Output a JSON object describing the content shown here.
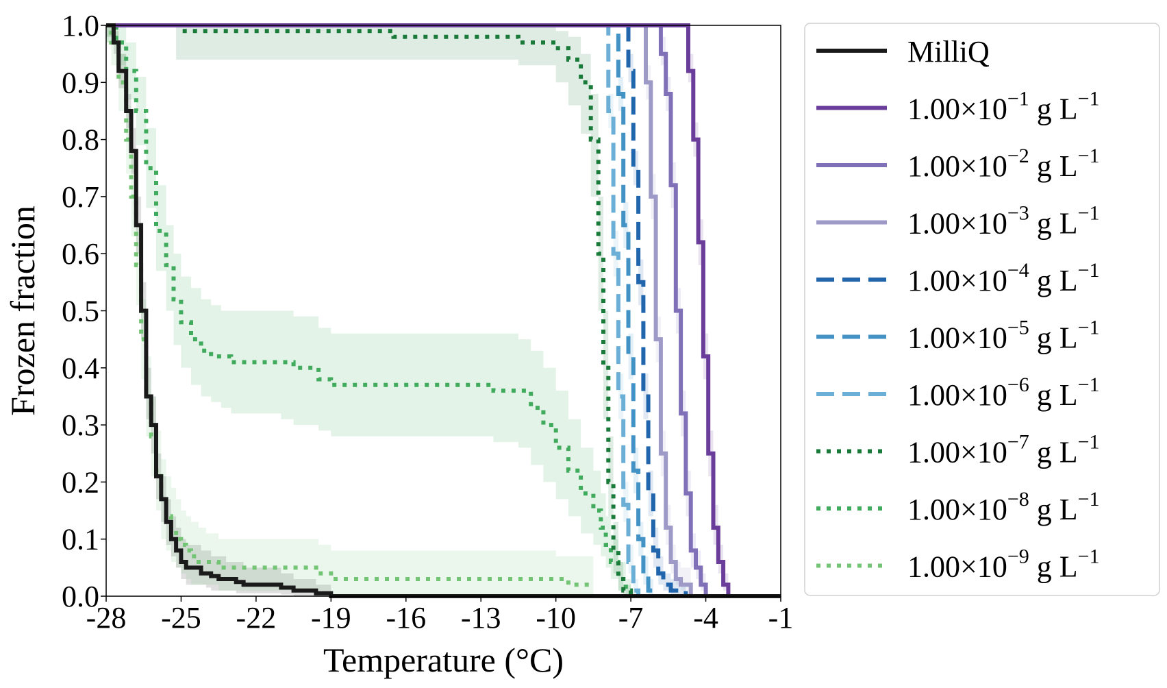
{
  "chart_data": {
    "type": "line",
    "xlabel": "Temperature (°C)",
    "ylabel": "Frozen fraction",
    "xlim": [
      -28,
      -1
    ],
    "ylim": [
      0,
      1
    ],
    "xticks": [
      "-28",
      "-25",
      "-22",
      "-19",
      "-16",
      "-13",
      "-10",
      "-7",
      "-4",
      "-1"
    ],
    "xtick_values": [
      -28,
      -25,
      -22,
      -19,
      -16,
      -13,
      -10,
      -7,
      -4,
      -1
    ],
    "yticks": [
      "0.0",
      "0.1",
      "0.2",
      "0.3",
      "0.4",
      "0.5",
      "0.6",
      "0.7",
      "0.8",
      "0.9",
      "1.0"
    ],
    "ytick_values": [
      0,
      0.1,
      0.2,
      0.3,
      0.4,
      0.5,
      0.6,
      0.7,
      0.8,
      0.9,
      1.0
    ],
    "grid": false,
    "legend_position": "outside-right",
    "series": [
      {
        "name": "MilliQ",
        "label_base": "MilliQ",
        "label_exp": "",
        "label_unit": "",
        "color": "#1a1a1a",
        "dash": "solid",
        "band": true,
        "x": [
          -28,
          -27.7,
          -27.5,
          -27.2,
          -27.0,
          -26.8,
          -26.6,
          -26.4,
          -26.2,
          -26.0,
          -25.8,
          -25.6,
          -25.4,
          -25.2,
          -25.0,
          -24.8,
          -24.5,
          -24.2,
          -24.0,
          -23.8,
          -23.5,
          -23.2,
          -23.0,
          -22.8,
          -22.5,
          -22.0,
          -21.5,
          -21.0,
          -20.5,
          -20.0,
          -19.8,
          -19.6,
          -19.4,
          -19.0,
          -1
        ],
        "y": [
          1.0,
          0.97,
          0.92,
          0.85,
          0.78,
          0.65,
          0.5,
          0.35,
          0.3,
          0.21,
          0.17,
          0.13,
          0.1,
          0.08,
          0.06,
          0.05,
          0.05,
          0.04,
          0.04,
          0.035,
          0.03,
          0.03,
          0.03,
          0.025,
          0.02,
          0.02,
          0.02,
          0.015,
          0.01,
          0.01,
          0.01,
          0.005,
          0.005,
          0.0,
          0.0
        ],
        "lower": [
          0.98,
          0.95,
          0.89,
          0.82,
          0.74,
          0.6,
          0.45,
          0.31,
          0.25,
          0.17,
          0.13,
          0.09,
          0.07,
          0.05,
          0.03,
          0.02,
          0.02,
          0.02,
          0.015,
          0.01,
          0.01,
          0.01,
          0.01,
          0.005,
          0.005,
          0.005,
          0.005,
          0.003,
          0.0,
          0.0,
          0.0,
          0.0,
          0.0,
          0.0,
          0.0
        ],
        "upper": [
          1.0,
          0.99,
          0.95,
          0.88,
          0.82,
          0.7,
          0.55,
          0.4,
          0.35,
          0.25,
          0.21,
          0.17,
          0.14,
          0.12,
          0.1,
          0.09,
          0.09,
          0.08,
          0.08,
          0.07,
          0.07,
          0.06,
          0.06,
          0.06,
          0.05,
          0.05,
          0.05,
          0.04,
          0.03,
          0.03,
          0.03,
          0.02,
          0.02,
          0.0,
          0.0
        ]
      },
      {
        "name": "1.00×10^-1 g L^-1",
        "label_base": "1.00×10",
        "label_exp": "−1",
        "label_unit": " g L",
        "color": "#6a3d9a",
        "dash": "solid",
        "band": true,
        "x": [
          -28,
          -4.9,
          -4.7,
          -4.5,
          -4.3,
          -4.1,
          -3.9,
          -3.7,
          -3.5,
          -3.3,
          -3.1,
          -1
        ],
        "y": [
          1.0,
          1.0,
          0.92,
          0.8,
          0.62,
          0.42,
          0.25,
          0.12,
          0.06,
          0.02,
          0.0,
          0.0
        ],
        "lower": [
          1.0,
          1.0,
          0.9,
          0.77,
          0.58,
          0.38,
          0.21,
          0.09,
          0.04,
          0.01,
          0.0,
          0.0
        ],
        "upper": [
          1.0,
          1.0,
          0.95,
          0.83,
          0.66,
          0.46,
          0.29,
          0.16,
          0.09,
          0.04,
          0.0,
          0.0
        ]
      },
      {
        "name": "1.00×10^-2 g L^-1",
        "label_base": "1.00×10",
        "label_exp": "−2",
        "label_unit": " g L",
        "color": "#8070b8",
        "dash": "solid",
        "band": true,
        "x": [
          -28,
          -6.0,
          -5.8,
          -5.6,
          -5.4,
          -5.2,
          -5.0,
          -4.8,
          -4.6,
          -4.4,
          -4.2,
          -4.0,
          -1
        ],
        "y": [
          1.0,
          1.0,
          0.95,
          0.88,
          0.72,
          0.5,
          0.32,
          0.18,
          0.08,
          0.05,
          0.02,
          0.0,
          0.0
        ],
        "lower": [
          1.0,
          1.0,
          0.93,
          0.85,
          0.68,
          0.46,
          0.28,
          0.14,
          0.05,
          0.03,
          0.01,
          0.0,
          0.0
        ],
        "upper": [
          1.0,
          1.0,
          0.98,
          0.91,
          0.76,
          0.54,
          0.36,
          0.22,
          0.11,
          0.08,
          0.04,
          0.0,
          0.0
        ]
      },
      {
        "name": "1.00×10^-3 g L^-1",
        "label_base": "1.00×10",
        "label_exp": "−3",
        "label_unit": " g L",
        "color": "#9e9ac8",
        "dash": "solid",
        "band": true,
        "x": [
          -28,
          -6.6,
          -6.4,
          -6.2,
          -6.0,
          -5.8,
          -5.6,
          -5.4,
          -5.2,
          -5.0,
          -4.8,
          -4.6,
          -1
        ],
        "y": [
          1.0,
          1.0,
          0.9,
          0.7,
          0.45,
          0.25,
          0.12,
          0.06,
          0.03,
          0.02,
          0.02,
          0.0,
          0.0
        ],
        "lower": [
          1.0,
          1.0,
          0.87,
          0.66,
          0.41,
          0.21,
          0.09,
          0.04,
          0.02,
          0.01,
          0.01,
          0.0,
          0.0
        ],
        "upper": [
          1.0,
          1.0,
          0.93,
          0.74,
          0.49,
          0.29,
          0.16,
          0.09,
          0.06,
          0.05,
          0.05,
          0.0,
          0.0
        ]
      },
      {
        "name": "1.00×10^-4 g L^-1",
        "label_base": "1.00×10",
        "label_exp": "−4",
        "label_unit": " g L",
        "color": "#2166ac",
        "dash": "dashed",
        "band": true,
        "x": [
          -28,
          -7.3,
          -7.1,
          -6.9,
          -6.7,
          -6.5,
          -6.3,
          -6.1,
          -5.9,
          -5.7,
          -5.4,
          -5.0,
          -4.8,
          -1
        ],
        "y": [
          1.0,
          1.0,
          0.92,
          0.75,
          0.55,
          0.35,
          0.18,
          0.08,
          0.04,
          0.02,
          0.01,
          0.01,
          0.0,
          0.0
        ],
        "lower": [
          1.0,
          1.0,
          0.9,
          0.72,
          0.51,
          0.31,
          0.14,
          0.05,
          0.02,
          0.01,
          0.0,
          0.0,
          0.0,
          0.0
        ],
        "upper": [
          1.0,
          1.0,
          0.95,
          0.78,
          0.59,
          0.39,
          0.22,
          0.12,
          0.07,
          0.04,
          0.03,
          0.02,
          0.0,
          0.0
        ]
      },
      {
        "name": "1.00×10^-5 g L^-1",
        "label_base": "1.00×10",
        "label_exp": "−5",
        "label_unit": " g L",
        "color": "#4292c6",
        "dash": "dashed",
        "band": true,
        "x": [
          -28,
          -7.7,
          -7.5,
          -7.3,
          -7.1,
          -6.9,
          -6.7,
          -6.5,
          -6.3,
          -6.1,
          -1
        ],
        "y": [
          1.0,
          1.0,
          0.88,
          0.65,
          0.42,
          0.22,
          0.1,
          0.04,
          0.01,
          0.0,
          0.0
        ],
        "lower": [
          1.0,
          1.0,
          0.85,
          0.61,
          0.38,
          0.18,
          0.07,
          0.02,
          0.0,
          0.0,
          0.0
        ],
        "upper": [
          1.0,
          1.0,
          0.91,
          0.69,
          0.46,
          0.26,
          0.13,
          0.07,
          0.03,
          0.0,
          0.0
        ]
      },
      {
        "name": "1.00×10^-6 g L^-1",
        "label_base": "1.00×10",
        "label_exp": "−6",
        "label_unit": " g L",
        "color": "#6baed6",
        "dash": "dashed",
        "band": true,
        "x": [
          -28,
          -8.1,
          -7.9,
          -7.7,
          -7.5,
          -7.3,
          -7.1,
          -6.9,
          -6.7,
          -1
        ],
        "y": [
          1.0,
          1.0,
          0.85,
          0.6,
          0.35,
          0.16,
          0.06,
          0.01,
          0.0,
          0.0
        ],
        "lower": [
          1.0,
          1.0,
          0.82,
          0.56,
          0.31,
          0.13,
          0.04,
          0.0,
          0.0,
          0.0
        ],
        "upper": [
          1.0,
          1.0,
          0.88,
          0.64,
          0.39,
          0.2,
          0.09,
          0.03,
          0.0,
          0.0
        ]
      },
      {
        "name": "1.00×10^-7 g L^-1",
        "label_base": "1.00×10",
        "label_exp": "−7",
        "label_unit": " g L",
        "color": "#1a7a3a",
        "dash": "dotted",
        "band": true,
        "x": [
          -28,
          -25.2,
          -25.0,
          -17.0,
          -16.5,
          -12.0,
          -11.5,
          -10.5,
          -10.0,
          -9.5,
          -9.0,
          -8.6,
          -8.3,
          -8.1,
          -7.9,
          -7.7,
          -7.5,
          -7.3,
          -7.0,
          -1
        ],
        "y": [
          1.0,
          1.0,
          0.99,
          0.99,
          0.98,
          0.98,
          0.97,
          0.97,
          0.96,
          0.94,
          0.9,
          0.8,
          0.6,
          0.4,
          0.2,
          0.08,
          0.03,
          0.01,
          0.0,
          0.0
        ],
        "lower": [
          1.0,
          0.94,
          0.94,
          0.94,
          0.94,
          0.94,
          0.93,
          0.93,
          0.9,
          0.86,
          0.81,
          0.7,
          0.5,
          0.31,
          0.14,
          0.04,
          0.01,
          0.0,
          0.0,
          0.0
        ],
        "upper": [
          1.0,
          1.0,
          1.0,
          1.0,
          1.0,
          1.0,
          1.0,
          1.0,
          0.99,
          0.98,
          0.95,
          0.88,
          0.7,
          0.5,
          0.28,
          0.13,
          0.06,
          0.02,
          0.0,
          0.0
        ]
      },
      {
        "name": "1.00×10^-8 g L^-1",
        "label_base": "1.00×10",
        "label_exp": "−8",
        "label_unit": " g L",
        "color": "#41ab5d",
        "dash": "dotted",
        "band": true,
        "x": [
          -28,
          -27.6,
          -27.2,
          -26.8,
          -26.4,
          -26.0,
          -25.6,
          -25.3,
          -25.0,
          -24.6,
          -24.2,
          -23.8,
          -23.4,
          -23.0,
          -22.5,
          -21.0,
          -20.5,
          -19.5,
          -19.0,
          -13.0,
          -12.5,
          -11.5,
          -11.0,
          -10.5,
          -10.0,
          -9.5,
          -9.0,
          -8.5,
          -8.2,
          -8.0,
          -7.8,
          -7.5,
          -7.2,
          -7.0,
          -1
        ],
        "y": [
          1.0,
          0.97,
          0.92,
          0.85,
          0.75,
          0.64,
          0.58,
          0.52,
          0.48,
          0.45,
          0.43,
          0.42,
          0.42,
          0.41,
          0.41,
          0.41,
          0.4,
          0.38,
          0.37,
          0.37,
          0.36,
          0.36,
          0.33,
          0.3,
          0.26,
          0.22,
          0.18,
          0.15,
          0.12,
          0.09,
          0.06,
          0.03,
          0.01,
          0.0,
          0.0
        ],
        "lower": [
          0.97,
          0.93,
          0.87,
          0.79,
          0.68,
          0.57,
          0.5,
          0.44,
          0.4,
          0.37,
          0.35,
          0.34,
          0.33,
          0.32,
          0.32,
          0.31,
          0.3,
          0.29,
          0.28,
          0.28,
          0.27,
          0.26,
          0.23,
          0.2,
          0.17,
          0.14,
          0.11,
          0.09,
          0.07,
          0.05,
          0.03,
          0.01,
          0.0,
          0.0,
          0.0
        ],
        "upper": [
          1.0,
          1.0,
          0.97,
          0.91,
          0.82,
          0.72,
          0.65,
          0.6,
          0.56,
          0.54,
          0.52,
          0.51,
          0.5,
          0.5,
          0.5,
          0.5,
          0.49,
          0.47,
          0.46,
          0.46,
          0.46,
          0.45,
          0.43,
          0.4,
          0.36,
          0.31,
          0.26,
          0.22,
          0.18,
          0.14,
          0.1,
          0.06,
          0.03,
          0.0,
          0.0
        ]
      },
      {
        "name": "1.00×10^-9 g L^-1",
        "label_base": "1.00×10",
        "label_exp": "−9",
        "label_unit": " g L",
        "color": "#74c476",
        "dash": "dotted",
        "band": true,
        "x": [
          -28,
          -27.8,
          -27.5,
          -27.2,
          -27.0,
          -26.8,
          -26.6,
          -26.4,
          -26.2,
          -26.0,
          -25.8,
          -25.6,
          -25.4,
          -25.2,
          -25.0,
          -24.8,
          -24.6,
          -24.3,
          -24.0,
          -23.5,
          -23.0,
          -22.0,
          -21.0,
          -20.0,
          -19.5,
          -19.0,
          -10.0,
          -9.5,
          -9.0,
          -8.5
        ],
        "y": [
          1.0,
          0.97,
          0.9,
          0.8,
          0.7,
          0.58,
          0.45,
          0.35,
          0.28,
          0.22,
          0.17,
          0.14,
          0.12,
          0.1,
          0.09,
          0.08,
          0.07,
          0.06,
          0.06,
          0.05,
          0.05,
          0.05,
          0.05,
          0.05,
          0.04,
          0.03,
          0.03,
          0.02,
          0.02,
          0.02
        ],
        "lower": [
          0.97,
          0.93,
          0.85,
          0.74,
          0.63,
          0.51,
          0.38,
          0.28,
          0.21,
          0.15,
          0.1,
          0.08,
          0.06,
          0.05,
          0.04,
          0.03,
          0.02,
          0.02,
          0.02,
          0.01,
          0.01,
          0.01,
          0.01,
          0.01,
          0.01,
          0.0,
          0.0,
          0.0,
          0.0,
          0.0
        ],
        "upper": [
          1.0,
          1.0,
          0.95,
          0.86,
          0.77,
          0.65,
          0.52,
          0.42,
          0.35,
          0.29,
          0.24,
          0.21,
          0.19,
          0.17,
          0.15,
          0.14,
          0.13,
          0.12,
          0.11,
          0.1,
          0.1,
          0.1,
          0.1,
          0.1,
          0.09,
          0.08,
          0.07,
          0.07,
          0.07,
          0.07
        ]
      }
    ]
  }
}
